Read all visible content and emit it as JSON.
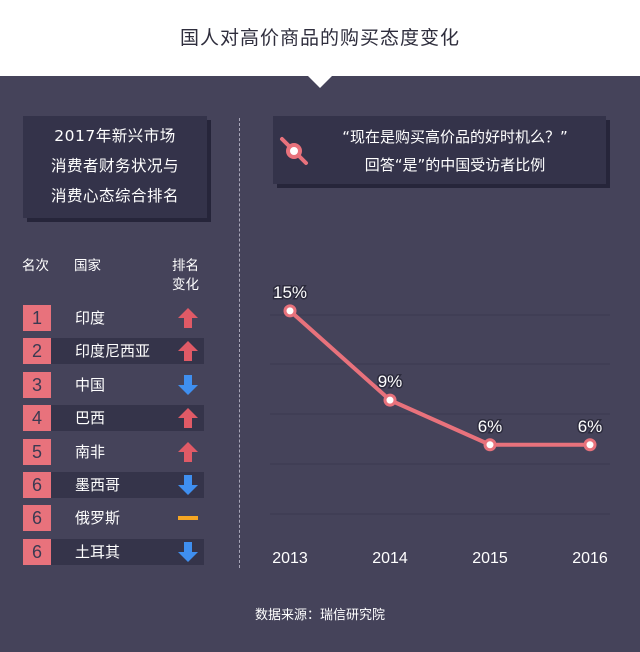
{
  "header": {
    "title": "国人对高价商品的购买态度变化"
  },
  "ranking": {
    "box_lines": [
      "2017年新兴市场",
      "消费者财务状况与",
      "消费心态综合排名"
    ],
    "col_rank": "名次",
    "col_country": "国家",
    "col_change": [
      "排名",
      "变化"
    ],
    "rows": [
      {
        "rank": "1",
        "country": "印度",
        "change": "up"
      },
      {
        "rank": "2",
        "country": "印度尼西亚",
        "change": "up"
      },
      {
        "rank": "3",
        "country": "中国",
        "change": "down"
      },
      {
        "rank": "4",
        "country": "巴西",
        "change": "up"
      },
      {
        "rank": "5",
        "country": "南非",
        "change": "up"
      },
      {
        "rank": "6",
        "country": "墨西哥",
        "change": "down"
      },
      {
        "rank": "6",
        "country": "俄罗斯",
        "change": "same"
      },
      {
        "rank": "6",
        "country": "土耳其",
        "change": "down"
      }
    ]
  },
  "question": {
    "line1": "“现在是购买高价品的好时机么？”",
    "line2": "回答“是”的中国受访者比例"
  },
  "chart_data": {
    "type": "line",
    "x": [
      "2013",
      "2014",
      "2015",
      "2016"
    ],
    "values": [
      15,
      9,
      6,
      6
    ],
    "data_labels": [
      "15%",
      "9%",
      "6%",
      "6%"
    ],
    "ylim": [
      0,
      16
    ],
    "grid": true
  },
  "colors": {
    "line": "#e8727c",
    "up": "#e05a66",
    "down": "#3f8ff0",
    "same": "#f5a623",
    "rank_bg": "#e8727c"
  },
  "source": "数据来源：瑞信研究院"
}
